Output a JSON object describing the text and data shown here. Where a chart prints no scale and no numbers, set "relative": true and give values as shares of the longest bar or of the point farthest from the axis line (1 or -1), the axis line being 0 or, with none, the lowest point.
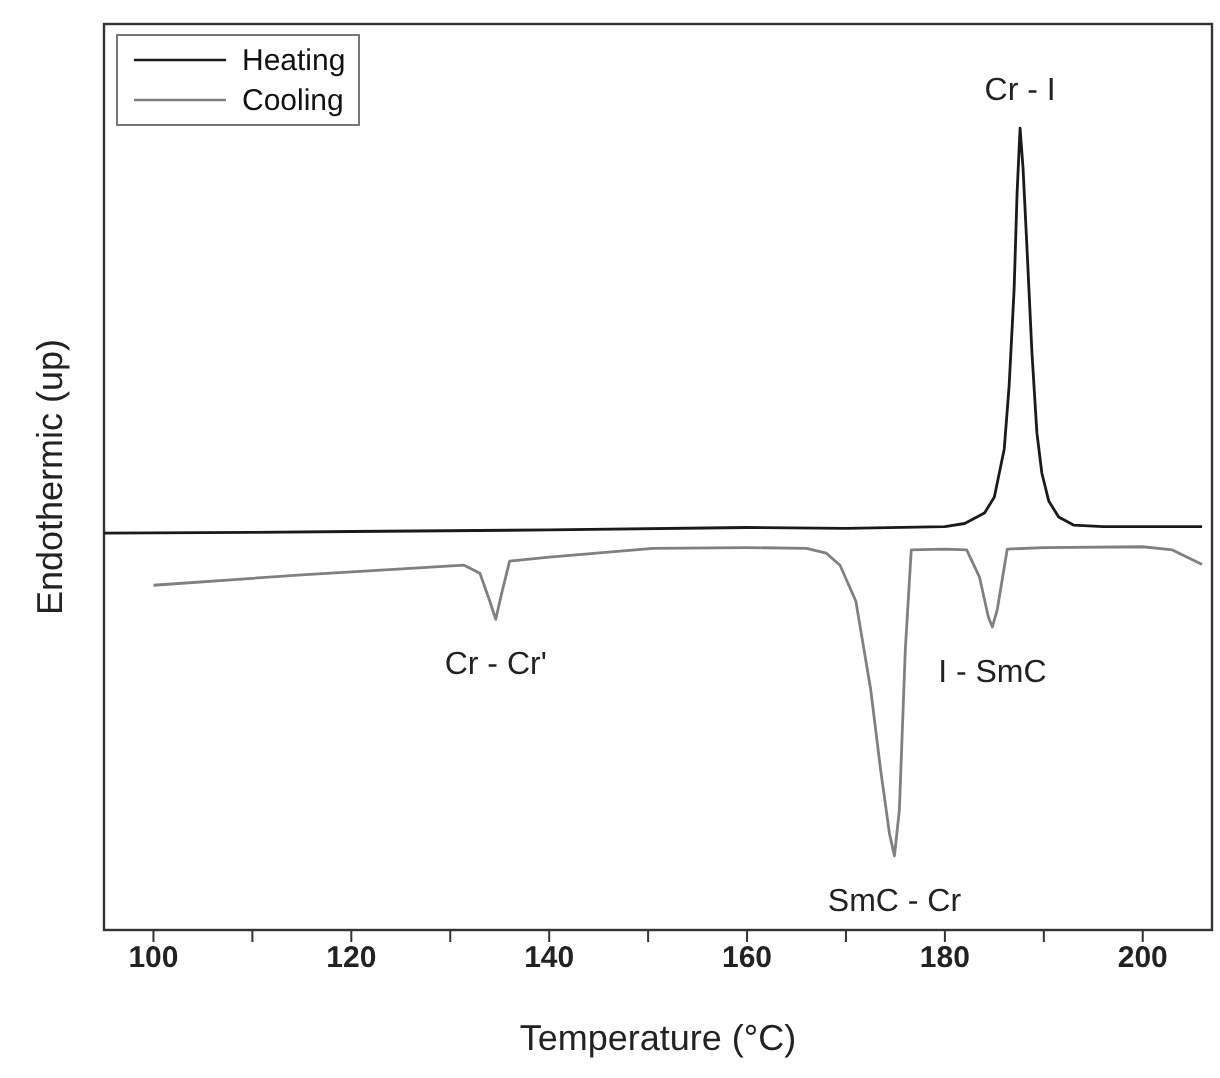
{
  "chart_data": {
    "type": "line",
    "relative": true,
    "xlabel": "Temperature (°C)",
    "ylabel": "Endothermic (up)",
    "xlim": [
      95,
      207
    ],
    "xticks": [
      100,
      {
        "value": 110,
        "label": null
      },
      120,
      {
        "value": 130,
        "label": null
      },
      140,
      {
        "value": 150,
        "label": null
      },
      160,
      {
        "value": 170,
        "label": null
      },
      180,
      {
        "value": 190,
        "label": null
      },
      200
    ],
    "legend": "top left",
    "marker": "none",
    "line_style": "solid",
    "series": [
      {
        "name": "Heating",
        "color": "#1a1a1a",
        "x": [
          95,
          110,
          120,
          140,
          160,
          170,
          180,
          182,
          184,
          185,
          186,
          186.5,
          187,
          187.3,
          187.6,
          187.9,
          188.3,
          188.8,
          189.3,
          189.8,
          190.5,
          191.5,
          193,
          196,
          206
        ],
        "values": [
          0.495,
          0.496,
          0.497,
          0.499,
          0.502,
          0.501,
          0.503,
          0.507,
          0.52,
          0.54,
          0.6,
          0.68,
          0.8,
          0.92,
          1.0,
          0.95,
          0.85,
          0.72,
          0.62,
          0.57,
          0.535,
          0.515,
          0.505,
          0.503,
          0.503
        ]
      },
      {
        "name": "Cooling",
        "color": "#808080",
        "x": [
          100,
          115,
          131.4,
          133,
          134,
          134.6,
          135.2,
          136,
          140,
          150.5,
          160,
          166,
          168,
          169.4,
          171,
          172.5,
          173.5,
          174.4,
          174.9,
          175.4,
          176,
          176.6,
          180,
          182.2,
          183.5,
          184.4,
          184.8,
          185.3,
          186.3,
          190,
          200,
          203,
          206
        ],
        "values": [
          0.43,
          0.443,
          0.455,
          0.445,
          0.41,
          0.3875,
          0.42,
          0.46,
          0.465,
          0.476,
          0.477,
          0.476,
          0.47,
          0.455,
          0.41,
          0.3,
          0.2,
          0.12,
          0.0925,
          0.15,
          0.35,
          0.474,
          0.475,
          0.474,
          0.44,
          0.39,
          0.378,
          0.4,
          0.475,
          0.477,
          0.478,
          0.474,
          0.456
        ]
      }
    ],
    "annotations": [
      {
        "text": "Cr - I",
        "x": 187.6,
        "y": 1.0
      },
      {
        "text": "Cr - Cr'",
        "x": 134.6,
        "y": 0.3875
      },
      {
        "text": "SmC - Cr",
        "x": 174.9,
        "y": 0.0925
      },
      {
        "text": "I - SmC",
        "x": 184.8,
        "y": 0.378
      }
    ]
  }
}
